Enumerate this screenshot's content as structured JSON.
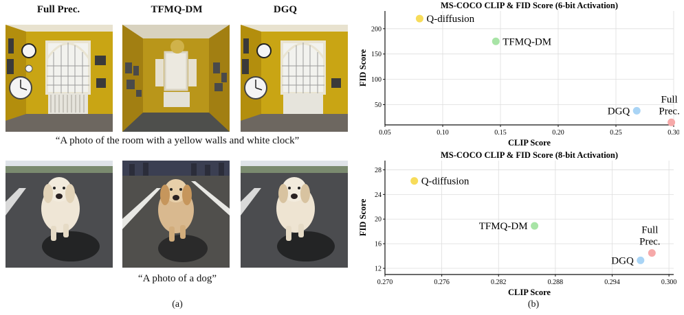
{
  "left_panel": {
    "column_titles": [
      "Full Prec.",
      "TFMQ-DM",
      "DGQ"
    ],
    "row_captions": [
      "“A photo of the room with a yellow walls and white clock”",
      "“A photo of a dog”"
    ],
    "label": "(a)"
  },
  "right_panel": {
    "label": "(b)"
  },
  "chart_data": [
    {
      "type": "scatter",
      "title": "MS-COCO CLIP & FID Score (6-bit Activation)",
      "xlabel": "CLIP Score",
      "ylabel": "FID Score",
      "xlim": [
        0.05,
        0.3
      ],
      "ylim": [
        10,
        235
      ],
      "xticks": [
        "0.05",
        "0.10",
        "0.15",
        "0.20",
        "0.25",
        "0.30"
      ],
      "yticks": [
        "50",
        "100",
        "150",
        "200"
      ],
      "xtick_values": [
        0.05,
        0.1,
        0.15,
        0.2,
        0.25,
        0.3
      ],
      "ytick_values": [
        50,
        100,
        150,
        200
      ],
      "grid": true,
      "points": [
        {
          "label": "Q-diffusion",
          "x": 0.08,
          "y": 220,
          "color": "#f7dc5a",
          "label_side": "right"
        },
        {
          "label": "TFMQ-DM",
          "x": 0.146,
          "y": 175,
          "color": "#a8e4a6",
          "label_side": "right"
        },
        {
          "label": "DGQ",
          "x": 0.268,
          "y": 38,
          "color": "#a9d4f5",
          "label_side": "left"
        },
        {
          "label": "Full\nPrec.",
          "x": 0.298,
          "y": 15,
          "color": "#f6a9a9",
          "label_side": "above"
        }
      ]
    },
    {
      "type": "scatter",
      "title": "MS-COCO CLIP & FID Score (8-bit Activation)",
      "xlabel": "CLIP Score",
      "ylabel": "FID Score",
      "xlim": [
        0.27,
        0.3005
      ],
      "ylim": [
        11,
        29.5
      ],
      "xticks": [
        "0.270",
        "0.276",
        "0.282",
        "0.288",
        "0.294",
        "0.300"
      ],
      "yticks": [
        "12",
        "16",
        "20",
        "24",
        "28"
      ],
      "xtick_values": [
        0.27,
        0.276,
        0.282,
        0.288,
        0.294,
        0.3
      ],
      "ytick_values": [
        12,
        16,
        20,
        24,
        28
      ],
      "grid": true,
      "points": [
        {
          "label": "Q-diffusion",
          "x": 0.2731,
          "y": 26.2,
          "color": "#f7dc5a",
          "label_side": "right"
        },
        {
          "label": "TFMQ-DM",
          "x": 0.2858,
          "y": 18.9,
          "color": "#a8e4a6",
          "label_side": "left"
        },
        {
          "label": "DGQ",
          "x": 0.297,
          "y": 13.3,
          "color": "#a9d4f5",
          "label_side": "left"
        },
        {
          "label": "Full\nPrec.",
          "x": 0.2982,
          "y": 14.5,
          "color": "#f6a9a9",
          "label_side": "above"
        }
      ]
    }
  ]
}
